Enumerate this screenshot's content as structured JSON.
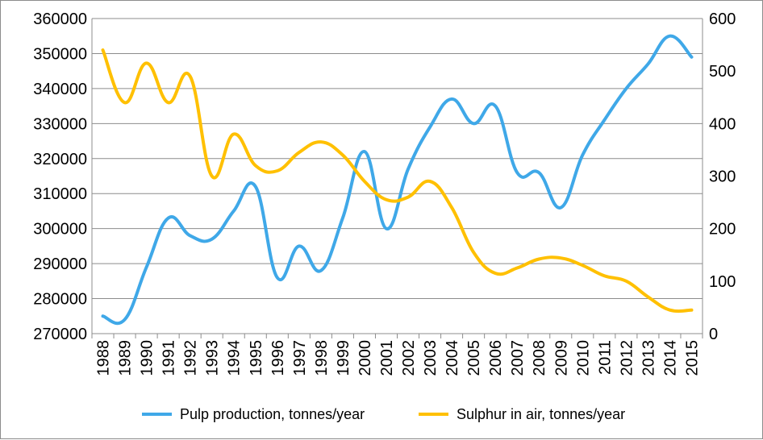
{
  "chart_data": {
    "type": "line",
    "x": [
      "1988",
      "1989",
      "1990",
      "1991",
      "1992",
      "1993",
      "1994",
      "1995",
      "1996",
      "1997",
      "1998",
      "1999",
      "2000",
      "2001",
      "2002",
      "2003",
      "2004",
      "2005",
      "2006",
      "2007",
      "2008",
      "2009",
      "2010",
      "2011",
      "2012",
      "2013",
      "2014",
      "2015"
    ],
    "series": [
      {
        "name": "Pulp production, tonnes/year",
        "axis": "left",
        "color": "#3fa8e8",
        "values": [
          275000,
          274000,
          289000,
          303000,
          298000,
          297000,
          305000,
          312000,
          286000,
          295000,
          288000,
          303000,
          322000,
          300000,
          317000,
          329000,
          337000,
          330000,
          335000,
          316000,
          316000,
          306000,
          321000,
          331000,
          340000,
          347000,
          355000,
          349000
        ]
      },
      {
        "name": "Sulphur in air, tonnes/year",
        "axis": "right",
        "color": "#ffc000",
        "values": [
          540,
          440,
          515,
          440,
          490,
          300,
          380,
          320,
          310,
          345,
          365,
          340,
          290,
          255,
          260,
          290,
          240,
          155,
          115,
          125,
          142,
          144,
          130,
          110,
          100,
          70,
          45,
          45
        ]
      }
    ],
    "y_left": {
      "min": 270000,
      "max": 360000,
      "ticks": [
        "360000",
        "350000",
        "340000",
        "330000",
        "320000",
        "310000",
        "300000",
        "290000",
        "280000",
        "270000"
      ]
    },
    "y_right": {
      "min": 0,
      "max": 600,
      "ticks": [
        "600",
        "500",
        "400",
        "300",
        "200",
        "100",
        "0"
      ]
    },
    "grid": "horizontal",
    "legend_position": "bottom"
  },
  "legend": {
    "item1": "Pulp production, tonnes/year",
    "item2": "Sulphur in air, tonnes/year"
  }
}
